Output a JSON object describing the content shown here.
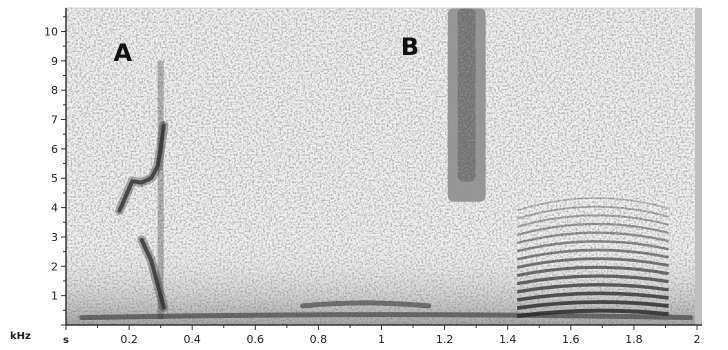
{
  "chart_data": {
    "type": "heatmap",
    "title": "",
    "xlabel": "s",
    "ylabel": "kHz",
    "xlim": [
      0,
      2
    ],
    "ylim": [
      0,
      10.8
    ],
    "x_ticks": [
      0.2,
      0.4,
      0.6,
      0.8,
      1,
      1.2,
      1.4,
      1.6,
      1.8,
      2
    ],
    "x_tick_labels": [
      "0.2",
      "0.4",
      "0.6",
      "0.8",
      "1",
      "1.2",
      "1.4",
      "1.6",
      "1.8",
      "2"
    ],
    "y_ticks": [
      1,
      2,
      3,
      4,
      5,
      6,
      7,
      8,
      9,
      10
    ],
    "y_tick_labels": [
      "1",
      "2",
      "3",
      "4",
      "5",
      "6",
      "7",
      "8",
      "9",
      "10"
    ],
    "colors": {
      "background": "#f2f2f2",
      "noise": "#8a8a8a",
      "energy": "#2a2a2a"
    },
    "annotations": [
      {
        "text": "A",
        "x": 0.18,
        "y": 9
      },
      {
        "text": "B",
        "x": 1.09,
        "y": 9.2
      }
    ],
    "features": [
      {
        "name": "A-trace",
        "type": "curve",
        "points": [
          [
            0.17,
            3.9
          ],
          [
            0.19,
            4.4
          ],
          [
            0.21,
            4.9
          ],
          [
            0.24,
            4.85
          ],
          [
            0.27,
            5.0
          ],
          [
            0.29,
            5.4
          ],
          [
            0.3,
            6.0
          ],
          [
            0.31,
            6.8
          ]
        ]
      },
      {
        "name": "A-stem",
        "type": "vband",
        "x": 0.3,
        "y_from": 0.2,
        "y_to": 9.0
      },
      {
        "name": "A-low-harmonics",
        "type": "curve",
        "points": [
          [
            0.24,
            2.9
          ],
          [
            0.27,
            2.2
          ],
          [
            0.29,
            1.4
          ],
          [
            0.31,
            0.6
          ]
        ]
      },
      {
        "name": "B-block",
        "type": "block",
        "x_from": 1.21,
        "x_to": 1.33,
        "y_from": 4.2,
        "y_to": 10.8
      },
      {
        "name": "mid-harmonic",
        "type": "band",
        "x_from": 0.75,
        "x_to": 1.15,
        "y": 0.65
      },
      {
        "name": "right-harmonic-stack",
        "type": "stack",
        "x_from": 1.43,
        "x_to": 1.91,
        "y_from": 0.3,
        "y_to": 3.9,
        "count": 14
      },
      {
        "name": "base-band",
        "type": "band",
        "x_from": 0.05,
        "x_to": 1.98,
        "y": 0.25
      }
    ]
  }
}
